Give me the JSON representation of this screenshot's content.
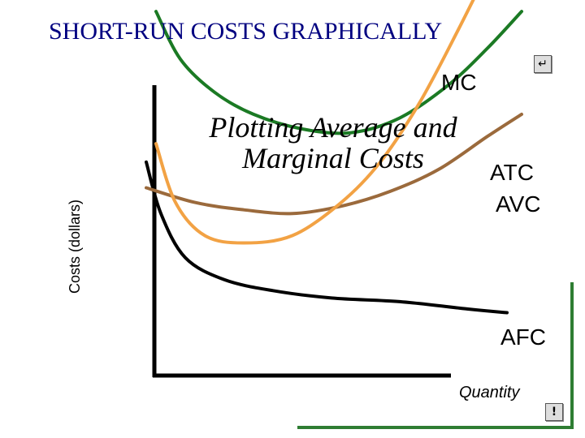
{
  "title": "SHORT-RUN COSTS GRAPHICALLY",
  "colors": {
    "title": "#000080",
    "frame_green": "#2e7d32",
    "mc": "#f2a244",
    "atc": "#1b7a24",
    "avc": "#9b6a3c",
    "afc": "#000000"
  },
  "icons": {
    "return_button": "return-arrow-icon",
    "alert_button": "exclamation-icon"
  },
  "chart_data": {
    "type": "line",
    "heading": "Plotting Average and Marginal Costs",
    "xlabel": "Quantity",
    "ylabel": "Costs (dollars)",
    "xlim": [
      0,
      100
    ],
    "ylim": [
      0,
      100
    ],
    "grid": false,
    "legend": "labels at curve ends",
    "series": [
      {
        "name": "MC",
        "x": [
          12,
          16,
          22,
          30,
          40,
          50,
          58,
          66,
          74,
          83
        ],
        "y": [
          62,
          46,
          37,
          35,
          37,
          46,
          57,
          73,
          93,
          117
        ]
      },
      {
        "name": "ATC",
        "x": [
          12,
          17,
          24,
          32,
          42,
          52,
          62,
          72,
          80,
          87
        ],
        "y": [
          98,
          85,
          76,
          70,
          66,
          65,
          69,
          78,
          88,
          98
        ]
      },
      {
        "name": "AVC",
        "x": [
          10,
          20,
          30,
          40,
          50,
          60,
          70,
          80,
          87
        ],
        "y": [
          50,
          46,
          44,
          43,
          45,
          49,
          55,
          64,
          70
        ]
      },
      {
        "name": "AFC",
        "x": [
          10,
          13,
          18,
          26,
          36,
          48,
          62,
          76,
          84
        ],
        "y": [
          57,
          43,
          31,
          25,
          22,
          20,
          19,
          17,
          16
        ]
      }
    ]
  }
}
